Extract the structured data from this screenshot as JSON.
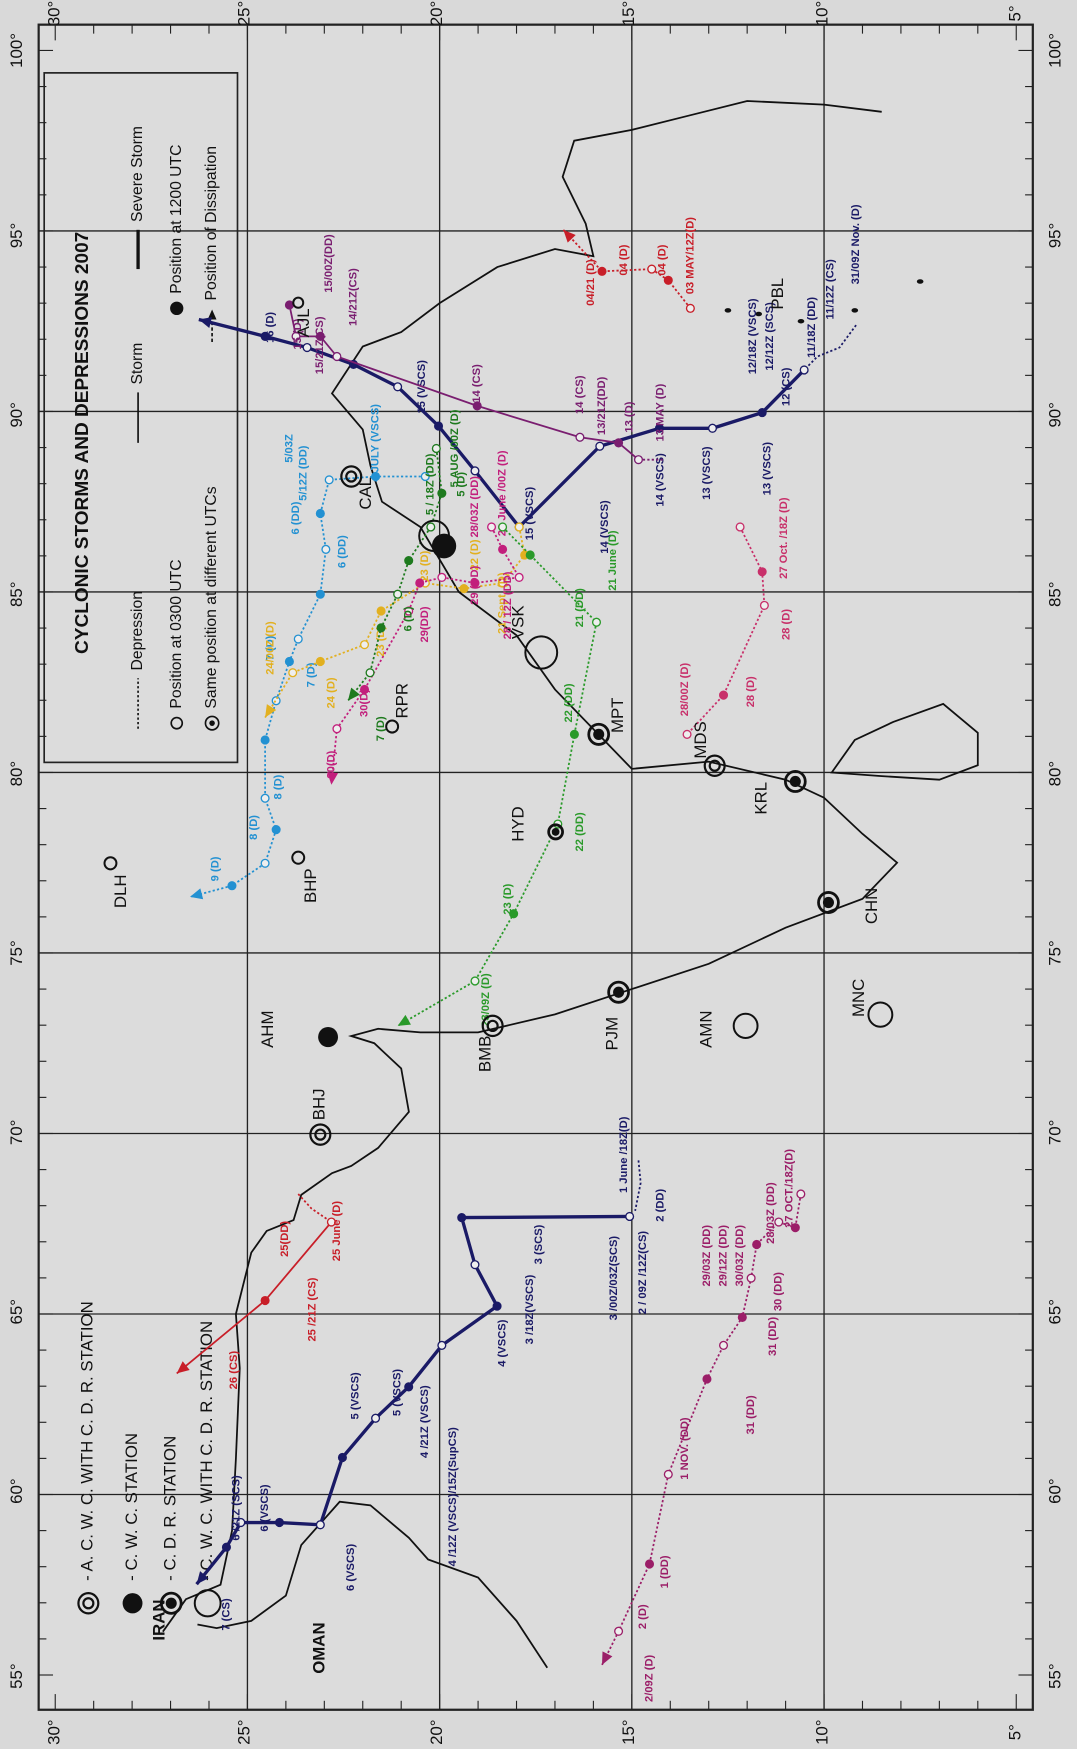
{
  "title": "CYCLONIC STORMS AND DEPRESSIONS 2007",
  "legend": {
    "depression": "Depression",
    "storm": "Storm",
    "severe_storm": "Severe Storm",
    "pos_0300": "Position at 0300 UTC",
    "pos_1200": "Position at 1200 UTC",
    "same_pos": "Same position at different UTCs",
    "dissipation": "Position of Dissipation"
  },
  "station_legend": [
    "- A. C. W. C. WITH C. D. R. STATION",
    "- C. W. C. STATION",
    "- C. D. R. STATION",
    "- C. W. C. WITH C. D. R. STATION"
  ],
  "lat_labels": [
    "30°",
    "25°",
    "20°",
    "15°",
    "10°",
    "5°"
  ],
  "lon_labels": [
    "100°",
    "95°",
    "90°",
    "85°",
    "80°",
    "75°",
    "70°",
    "65°",
    "60°",
    "55°"
  ],
  "places": [
    "IRAN",
    "OMAN",
    "DLH",
    "BHP",
    "AHM",
    "BHJ",
    "BMB",
    "PJM",
    "AMN",
    "MNC",
    "CHN",
    "KRL",
    "MDS",
    "MPT",
    "HYD",
    "VSK",
    "RPR",
    "CAL",
    "AJL",
    "PBL"
  ],
  "track_labels": [
    [
      "1 June /18Z(D)",
      "2 (DD)",
      "2 / 09Z /12Z(CS)",
      "3 /00Z/03Z(SCS)",
      "3 (SCS)",
      "3 /18Z(VSCS)",
      "4 (VSCS)",
      "4 /12Z (VSCS)/15Z(SupCS)",
      "4 /21Z (VSCS)",
      "5 (VSCS)",
      "5 (VSCS)",
      "6 (VSCS)",
      "6 (VSCS)",
      "6 /21Z (SCS)",
      "7 (CS)"
    ],
    [
      "25 June (D)",
      "25(DD)",
      "25 /21Z (CS)",
      "26 (CS)"
    ],
    [
      "27 OCT./18Z(D)",
      "28/03Z (DD)",
      "29/03Z (DD)",
      "29/12Z (DD)",
      "30/03Z (DD)",
      "30 (DD)",
      "31 (DD)",
      "31 (DD)",
      "1 NOV. (DD)",
      "1 (DD)",
      "2 (D)",
      "2/09Z (D)"
    ],
    [
      "31/09Z Nov. (D)",
      "11/12Z (CS)",
      "11/18Z (DD)",
      "12 (CS)",
      "12/12Z (SCS)",
      "12/18Z (VSCS)",
      "13 (VSCS)",
      "13 (VSCS)",
      "14 (VSCS)",
      "14 (VSCS)",
      "15 (VSCS)",
      "15 (VSCS)",
      "16 (D)"
    ],
    [
      "13 MAY (D)",
      "13 (D)",
      "13/21Z(DD)",
      "14 (CS)",
      "14 (CS)",
      "14/21Z(CS)",
      "15/00Z(DD)",
      "15/21Z(CS)",
      "15 (D)"
    ],
    [
      "03 MAY/12Z(D)",
      "04 (D)",
      "04 (D)",
      "04/21 (D)"
    ],
    [
      "4 JULY (VSCS)",
      "5/03Z",
      "5/12Z (DD)",
      "6 (DD)",
      "6 (DD)",
      "7 (D)",
      "7 (D)",
      "8 (D)",
      "8 (D)",
      "9 (D)"
    ],
    [
      "21 Sept. (D)",
      "22 (D)",
      "23 (D)",
      "23 (D)",
      "24 (D)",
      "24/00Z (D)"
    ],
    [
      "28 June /00Z (D)",
      "28/03Z (DD)",
      "28 / 12Z (DD)",
      "29 (DD)",
      "29(DD)",
      "30(D)",
      "30(D)"
    ],
    [
      "5 AUG /00Z (D)",
      "5 (D)",
      "5 / 18Z (DD)",
      "6 (D)",
      "7 (D)"
    ],
    [
      "21 June (D)",
      "21 (DD)",
      "22 (DD)",
      "22 (DD)",
      "23 (D)",
      "23/09Z (D)"
    ],
    [
      "27 Oct. /18Z (D)",
      "28 (D)",
      "28 (D)",
      "28/00Z (D)"
    ]
  ]
}
